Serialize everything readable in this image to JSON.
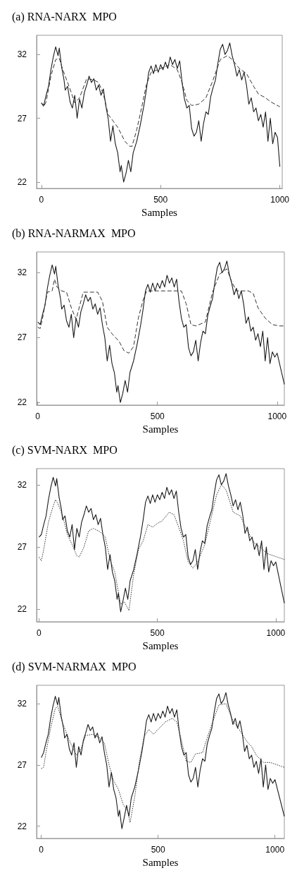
{
  "chart_data": [
    {
      "type": "line",
      "title": "(a) RNA-NARX  MPO",
      "xlabel": "Samples",
      "xlim": [
        -20,
        1010
      ],
      "ylim": [
        21.5,
        33.5
      ],
      "xticks": [
        0,
        500,
        1000
      ],
      "yticks": [
        22,
        27,
        32
      ],
      "grid": false,
      "marker": "none",
      "series": [
        {
          "color": "#1a1a1a",
          "line_style": "solid",
          "x": [
            0,
            10,
            20,
            30,
            40,
            50,
            60,
            70,
            75,
            85,
            95,
            100,
            110,
            120,
            130,
            140,
            150,
            160,
            170,
            180,
            190,
            200,
            210,
            220,
            230,
            240,
            250,
            260,
            270,
            280,
            290,
            300,
            310,
            320,
            330,
            335,
            345,
            355,
            365,
            375,
            385,
            400,
            415,
            430,
            440,
            450,
            460,
            470,
            480,
            490,
            500,
            510,
            520,
            530,
            540,
            550,
            560,
            570,
            580,
            590,
            600,
            610,
            620,
            630,
            640,
            650,
            660,
            670,
            680,
            690,
            700,
            710,
            720,
            730,
            740,
            750,
            760,
            770,
            780,
            790,
            800,
            810,
            820,
            830,
            840,
            850,
            860,
            870,
            880,
            890,
            900,
            910,
            920,
            930,
            940,
            950,
            960,
            970,
            980,
            990,
            1000
          ],
          "values": [
            28.2,
            28.0,
            28.8,
            29.5,
            30.8,
            31.8,
            32.6,
            31.9,
            32.5,
            31.0,
            30.0,
            29.2,
            29.5,
            28.3,
            27.8,
            28.8,
            27.0,
            28.5,
            27.8,
            29.0,
            29.6,
            30.3,
            29.8,
            30.1,
            29.2,
            29.6,
            28.8,
            29.3,
            28.0,
            27.0,
            25.2,
            26.4,
            25.0,
            24.3,
            22.8,
            23.3,
            22.0,
            22.7,
            23.7,
            22.8,
            24.3,
            25.2,
            26.5,
            28.0,
            29.2,
            30.6,
            31.1,
            30.5,
            31.2,
            30.6,
            31.2,
            30.8,
            31.4,
            30.9,
            31.8,
            31.2,
            31.6,
            30.9,
            31.5,
            29.8,
            28.5,
            27.8,
            28.0,
            26.2,
            25.6,
            25.9,
            26.8,
            25.2,
            26.6,
            27.5,
            27.3,
            28.7,
            29.4,
            30.0,
            31.3,
            32.4,
            32.8,
            32.0,
            32.3,
            32.9,
            31.9,
            31.2,
            30.3,
            30.8,
            30.0,
            30.6,
            29.6,
            28.1,
            28.6,
            27.5,
            27.8,
            26.8,
            27.3,
            26.3,
            27.5,
            25.2,
            27.0,
            25.0,
            25.9,
            25.5,
            23.2
          ]
        },
        {
          "color": "#333333",
          "line_style": "dashed",
          "x": [
            0,
            10,
            20,
            40,
            60,
            75,
            90,
            120,
            140,
            160,
            190,
            220,
            240,
            260,
            280,
            300,
            320,
            350,
            370,
            380,
            400,
            420,
            440,
            460,
            500,
            540,
            570,
            590,
            610,
            630,
            660,
            690,
            720,
            750,
            780,
            800,
            830,
            860,
            890,
            910,
            940,
            960,
            980,
            1000
          ],
          "values": [
            28.2,
            27.9,
            28.3,
            30.3,
            31.6,
            31.7,
            30.8,
            29.3,
            28.2,
            28.6,
            30.1,
            30.0,
            29.8,
            28.9,
            27.3,
            26.8,
            26.3,
            25.2,
            24.8,
            24.8,
            26.1,
            27.8,
            29.6,
            30.6,
            30.9,
            31.2,
            30.8,
            29.8,
            28.4,
            28.0,
            28.1,
            28.6,
            30.0,
            31.6,
            31.9,
            31.6,
            30.9,
            30.5,
            29.5,
            28.9,
            28.6,
            28.3,
            28.1,
            27.9
          ]
        }
      ]
    },
    {
      "type": "line",
      "title": "(b) RNA-NARMAX  MPO",
      "xlabel": "Samples",
      "xlim": [
        -5,
        1030
      ],
      "ylim": [
        21.8,
        33.6
      ],
      "xticks": [
        0,
        500,
        1000
      ],
      "yticks": [
        22,
        27,
        32
      ],
      "grid": false,
      "marker": "none",
      "series": [
        {
          "color": "#1a1a1a",
          "line_style": "solid",
          "x": [
            0,
            10,
            20,
            30,
            40,
            50,
            60,
            70,
            75,
            85,
            95,
            100,
            110,
            120,
            130,
            140,
            150,
            160,
            170,
            180,
            190,
            200,
            210,
            220,
            230,
            240,
            250,
            260,
            270,
            280,
            290,
            300,
            310,
            320,
            330,
            335,
            345,
            355,
            365,
            375,
            385,
            400,
            415,
            430,
            440,
            450,
            460,
            470,
            480,
            490,
            500,
            510,
            520,
            530,
            540,
            550,
            560,
            570,
            580,
            590,
            600,
            610,
            620,
            630,
            640,
            650,
            660,
            670,
            680,
            690,
            700,
            710,
            720,
            730,
            740,
            750,
            760,
            770,
            780,
            790,
            800,
            810,
            820,
            830,
            840,
            850,
            860,
            870,
            880,
            890,
            900,
            910,
            920,
            930,
            940,
            950,
            960,
            970,
            980,
            990,
            1000,
            1030
          ],
          "values": [
            28.2,
            28.0,
            28.8,
            29.5,
            30.8,
            31.8,
            32.6,
            31.9,
            32.5,
            31.0,
            30.0,
            29.2,
            29.5,
            28.3,
            27.8,
            28.8,
            27.0,
            28.5,
            27.8,
            29.0,
            29.6,
            30.3,
            29.8,
            30.1,
            29.2,
            29.6,
            28.8,
            29.3,
            28.0,
            27.0,
            25.2,
            26.4,
            25.0,
            24.3,
            22.8,
            23.3,
            22.0,
            22.7,
            23.7,
            22.8,
            24.3,
            25.2,
            26.5,
            28.0,
            29.2,
            30.6,
            31.1,
            30.5,
            31.2,
            30.6,
            31.2,
            30.8,
            31.4,
            30.9,
            31.8,
            31.2,
            31.6,
            30.9,
            31.5,
            29.8,
            28.5,
            27.8,
            28.0,
            26.2,
            25.6,
            25.9,
            26.8,
            25.2,
            26.6,
            27.5,
            27.3,
            28.7,
            29.4,
            30.0,
            31.3,
            32.4,
            32.8,
            32.0,
            32.3,
            32.9,
            31.9,
            31.2,
            30.3,
            30.8,
            30.0,
            30.6,
            29.6,
            28.1,
            28.6,
            27.5,
            27.8,
            26.8,
            27.3,
            26.3,
            27.5,
            25.2,
            27.0,
            25.0,
            25.9,
            25.5,
            25.8,
            23.4
          ]
        },
        {
          "color": "#333333",
          "line_style": "dashed",
          "x": [
            0,
            10,
            20,
            40,
            60,
            70,
            80,
            100,
            120,
            140,
            160,
            190,
            220,
            250,
            270,
            290,
            310,
            340,
            360,
            380,
            400,
            420,
            440,
            455,
            500,
            560,
            600,
            620,
            640,
            660,
            700,
            730,
            760,
            790,
            810,
            830,
            880,
            900,
            920,
            950,
            980,
            1010,
            1030
          ],
          "values": [
            27.8,
            27.7,
            28.5,
            30.5,
            30.6,
            31.5,
            30.9,
            30.6,
            30.5,
            29.3,
            28.4,
            30.5,
            30.5,
            30.5,
            29.8,
            27.8,
            27.3,
            26.7,
            26.0,
            25.8,
            26.3,
            28.5,
            29.9,
            30.6,
            30.6,
            30.6,
            30.6,
            29.6,
            28.0,
            27.9,
            28.2,
            30.5,
            31.9,
            32.3,
            31.3,
            30.6,
            30.6,
            30.4,
            29.3,
            28.5,
            28.0,
            27.9,
            27.9
          ]
        }
      ]
    },
    {
      "type": "line",
      "title": "(c) SVM-NARX  MPO",
      "xlabel": "Samples",
      "xlim": [
        -10,
        1036
      ],
      "ylim": [
        21,
        33.3
      ],
      "xticks": [
        0,
        500,
        1000
      ],
      "yticks": [
        22,
        27,
        32
      ],
      "grid": false,
      "marker": "none",
      "series": [
        {
          "color": "#1a1a1a",
          "line_style": "solid",
          "x": [
            0,
            10,
            20,
            30,
            40,
            50,
            60,
            70,
            75,
            85,
            95,
            100,
            110,
            120,
            130,
            140,
            150,
            160,
            170,
            180,
            190,
            200,
            210,
            220,
            230,
            240,
            250,
            260,
            270,
            280,
            290,
            300,
            310,
            320,
            330,
            335,
            345,
            355,
            365,
            375,
            385,
            400,
            415,
            430,
            440,
            450,
            460,
            470,
            480,
            490,
            500,
            510,
            520,
            530,
            540,
            550,
            560,
            570,
            580,
            590,
            600,
            610,
            620,
            630,
            640,
            650,
            660,
            670,
            680,
            690,
            700,
            710,
            720,
            730,
            740,
            750,
            760,
            770,
            780,
            790,
            800,
            810,
            820,
            830,
            840,
            850,
            860,
            870,
            880,
            890,
            900,
            910,
            920,
            930,
            940,
            950,
            960,
            970,
            980,
            990,
            1000,
            1036
          ],
          "values": [
            27.8,
            28.0,
            28.8,
            29.5,
            30.8,
            31.8,
            32.6,
            31.9,
            32.5,
            31.0,
            30.0,
            29.2,
            29.5,
            28.3,
            27.8,
            28.8,
            26.8,
            28.5,
            27.8,
            29.0,
            29.6,
            30.3,
            29.8,
            30.1,
            29.2,
            29.6,
            28.8,
            29.3,
            28.0,
            27.0,
            25.2,
            26.4,
            25.0,
            24.3,
            22.8,
            23.3,
            21.8,
            22.7,
            23.7,
            22.8,
            24.3,
            25.2,
            26.5,
            28.0,
            29.2,
            30.6,
            31.1,
            30.5,
            31.2,
            30.6,
            31.2,
            30.8,
            31.4,
            30.9,
            31.8,
            31.2,
            31.6,
            30.9,
            31.5,
            29.8,
            28.5,
            27.8,
            28.0,
            26.2,
            25.6,
            25.9,
            26.8,
            25.2,
            26.6,
            27.5,
            27.3,
            28.7,
            29.4,
            30.0,
            31.3,
            32.4,
            32.8,
            32.0,
            32.3,
            32.9,
            31.9,
            31.2,
            30.3,
            30.8,
            30.0,
            30.6,
            29.6,
            28.1,
            28.6,
            27.5,
            27.8,
            26.8,
            27.3,
            26.3,
            27.5,
            25.2,
            27.0,
            25.0,
            25.9,
            25.5,
            25.8,
            22.5
          ]
        },
        {
          "color": "#333333",
          "line_style": "dotted",
          "x": [
            0,
            10,
            20,
            40,
            60,
            70,
            80,
            100,
            120,
            140,
            160,
            170,
            190,
            210,
            230,
            260,
            280,
            300,
            320,
            345,
            360,
            380,
            400,
            420,
            440,
            460,
            480,
            500,
            520,
            550,
            570,
            590,
            610,
            630,
            650,
            670,
            700,
            720,
            750,
            770,
            790,
            820,
            850,
            880,
            910,
            940,
            960,
            990,
            1036
          ],
          "values": [
            26.2,
            25.9,
            26.8,
            29.0,
            30.3,
            30.8,
            30.5,
            29.5,
            28.0,
            27.2,
            26.3,
            26.2,
            27.0,
            28.3,
            28.5,
            28.2,
            27.8,
            26.0,
            25.0,
            22.4,
            22.6,
            21.9,
            24.8,
            26.8,
            27.5,
            28.8,
            28.6,
            28.9,
            29.1,
            29.8,
            29.6,
            28.6,
            27.5,
            25.8,
            25.3,
            25.8,
            27.2,
            28.8,
            31.2,
            32.0,
            31.6,
            29.8,
            29.5,
            28.3,
            27.3,
            26.9,
            26.5,
            26.3,
            26.0
          ]
        }
      ]
    },
    {
      "type": "line",
      "title": "(d) SVM-NARMAX  MPO",
      "xlabel": "Samples",
      "xlim": [
        -20,
        1040
      ],
      "ylim": [
        21,
        33.5
      ],
      "xticks": [
        0,
        500,
        1000
      ],
      "yticks": [
        22,
        27,
        32
      ],
      "grid": false,
      "marker": "none",
      "series": [
        {
          "color": "#1a1a1a",
          "line_style": "solid",
          "x": [
            0,
            10,
            20,
            30,
            40,
            50,
            60,
            70,
            75,
            85,
            95,
            100,
            110,
            120,
            130,
            140,
            150,
            160,
            170,
            180,
            190,
            200,
            210,
            220,
            230,
            240,
            250,
            260,
            270,
            280,
            290,
            300,
            310,
            320,
            330,
            335,
            345,
            355,
            365,
            375,
            385,
            400,
            415,
            430,
            440,
            450,
            460,
            470,
            480,
            490,
            500,
            510,
            520,
            530,
            540,
            550,
            560,
            570,
            580,
            590,
            600,
            610,
            620,
            630,
            640,
            650,
            660,
            670,
            680,
            690,
            700,
            710,
            720,
            730,
            740,
            750,
            760,
            770,
            780,
            790,
            800,
            810,
            820,
            830,
            840,
            850,
            860,
            870,
            880,
            890,
            900,
            910,
            920,
            930,
            940,
            950,
            960,
            970,
            980,
            990,
            1000,
            1040
          ],
          "values": [
            27.6,
            28.0,
            28.8,
            29.5,
            30.8,
            31.8,
            32.6,
            31.9,
            32.5,
            31.0,
            30.0,
            29.2,
            29.5,
            28.3,
            27.8,
            28.8,
            26.8,
            28.5,
            27.8,
            29.0,
            29.6,
            30.3,
            29.8,
            30.1,
            29.2,
            29.6,
            28.8,
            29.3,
            28.0,
            27.0,
            25.2,
            26.4,
            25.0,
            24.3,
            22.8,
            23.3,
            21.8,
            22.7,
            23.7,
            22.8,
            24.3,
            25.2,
            26.5,
            28.0,
            29.2,
            30.6,
            31.1,
            30.5,
            31.2,
            30.6,
            31.2,
            30.8,
            31.4,
            30.9,
            31.8,
            31.2,
            31.6,
            30.9,
            31.5,
            29.8,
            28.5,
            27.8,
            28.0,
            26.2,
            25.6,
            25.9,
            26.8,
            25.2,
            26.6,
            27.5,
            27.3,
            28.7,
            29.4,
            30.0,
            31.3,
            32.4,
            32.8,
            32.0,
            32.3,
            32.9,
            31.9,
            31.2,
            30.3,
            30.8,
            30.0,
            30.6,
            29.6,
            28.1,
            28.6,
            27.5,
            27.8,
            26.8,
            27.3,
            26.3,
            27.5,
            25.2,
            27.0,
            25.0,
            25.9,
            25.5,
            25.8,
            22.8
          ]
        },
        {
          "color": "#333333",
          "line_style": "dotted",
          "x": [
            0,
            10,
            20,
            40,
            60,
            70,
            90,
            120,
            150,
            170,
            190,
            220,
            250,
            270,
            290,
            310,
            330,
            350,
            370,
            380,
            400,
            420,
            440,
            460,
            480,
            500,
            530,
            560,
            580,
            600,
            620,
            640,
            660,
            690,
            720,
            760,
            790,
            820,
            850,
            880,
            900,
            920,
            950,
            980,
            1010,
            1040
          ],
          "values": [
            26.7,
            26.8,
            28.0,
            30.0,
            31.6,
            31.8,
            30.5,
            29.0,
            27.8,
            28.3,
            29.4,
            29.5,
            29.2,
            28.8,
            27.0,
            25.7,
            25.0,
            23.8,
            23.2,
            22.3,
            24.4,
            27.3,
            29.3,
            29.9,
            29.5,
            29.9,
            30.5,
            30.8,
            30.5,
            29.0,
            27.3,
            27.2,
            27.9,
            28.0,
            29.8,
            31.9,
            32.0,
            30.6,
            29.8,
            28.9,
            28.5,
            27.8,
            27.2,
            27.2,
            27.0,
            26.8
          ]
        }
      ]
    }
  ]
}
